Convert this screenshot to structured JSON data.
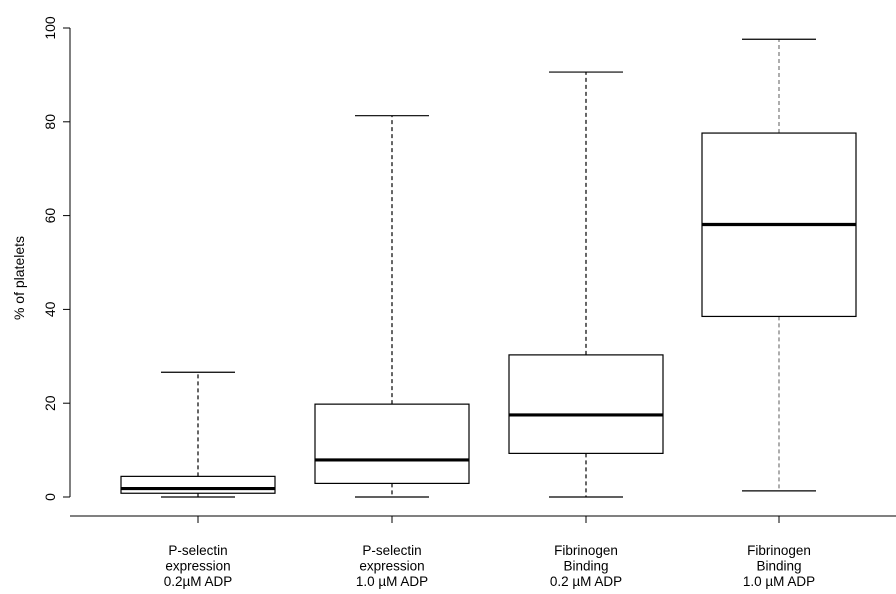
{
  "chart_data": {
    "type": "boxplot",
    "title": "",
    "xlabel": "",
    "ylabel": "% of platelets",
    "ylim": [
      0,
      100
    ],
    "yticks": [
      0,
      20,
      40,
      60,
      80,
      100
    ],
    "grid": false,
    "categories": [
      [
        "P-selectin",
        "expression",
        "0.2µM ADP"
      ],
      [
        "P-selectin",
        "expression",
        "1.0 µM ADP"
      ],
      [
        "Fibrinogen",
        "Binding",
        "0.2 µM ADP"
      ],
      [
        "Fibrinogen",
        "Binding",
        "1.0 µM ADP"
      ]
    ],
    "boxes": [
      {
        "min": 0,
        "q1": 0.8,
        "median": 1.8,
        "q3": 4.4,
        "max": 26.6
      },
      {
        "min": 0,
        "q1": 2.9,
        "median": 7.9,
        "q3": 19.8,
        "max": 81.3
      },
      {
        "min": 0,
        "q1": 9.3,
        "median": 17.5,
        "q3": 30.3,
        "max": 90.6
      },
      {
        "min": 1.3,
        "q1": 38.5,
        "median": 58.1,
        "q3": 77.6,
        "max": 97.6
      }
    ]
  }
}
